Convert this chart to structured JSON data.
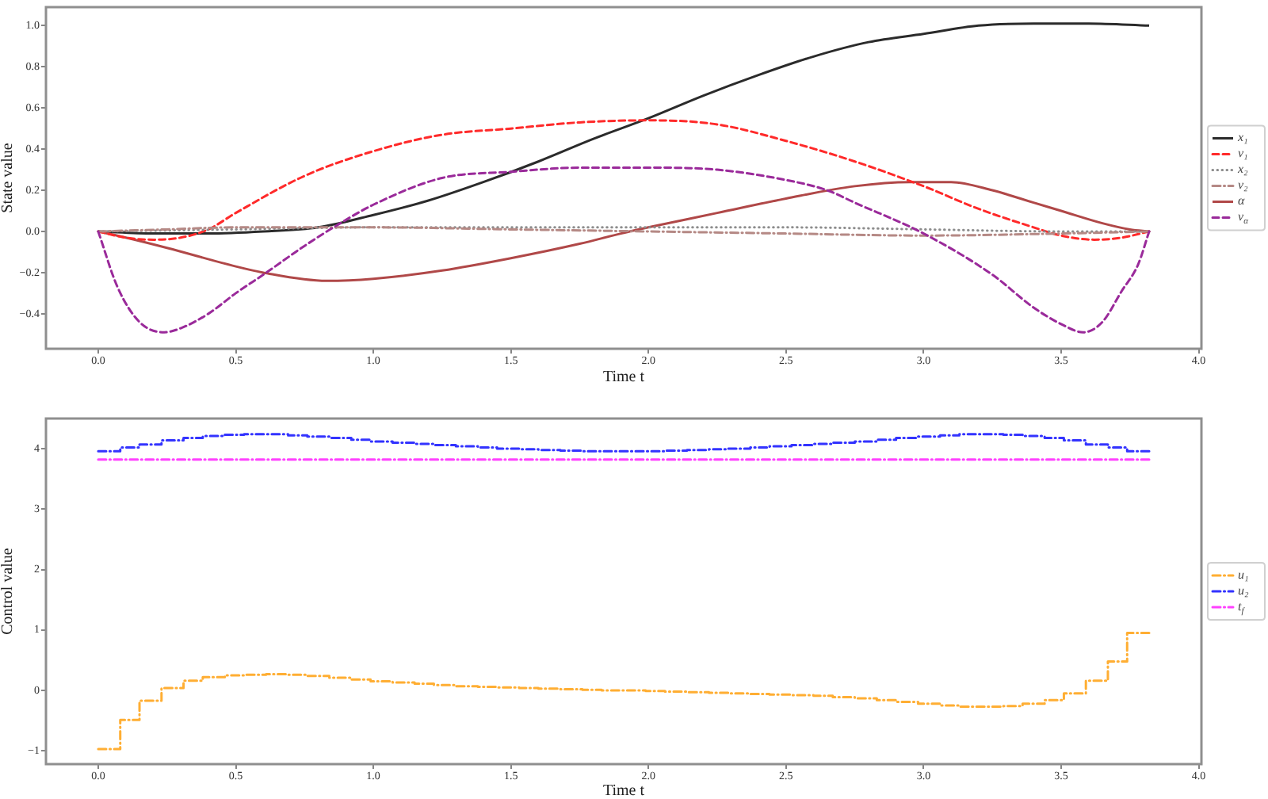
{
  "chart_data": [
    {
      "type": "line",
      "xlabel": "Time t",
      "ylabel": "State value",
      "xlim": [
        -0.19,
        4.01
      ],
      "ylim": [
        -0.57,
        1.09
      ],
      "xticks": [
        {
          "value": 0,
          "label": "0.0"
        },
        0.5,
        {
          "value": 1,
          "label": "1.0"
        },
        1.5,
        {
          "value": 2,
          "label": "2.0"
        },
        2.5,
        {
          "value": 3,
          "label": "3.0"
        },
        3.5,
        {
          "value": 4,
          "label": "4.0"
        }
      ],
      "yticks": [
        {
          "value": -0.4,
          "label": "−0.4"
        },
        {
          "value": -0.2,
          "label": "−0.2"
        },
        {
          "value": 0,
          "label": "0.0"
        },
        0.2,
        0.4,
        0.6,
        0.8,
        {
          "value": 1,
          "label": "1.0"
        }
      ],
      "legend": "right",
      "series": [
        {
          "name": "x₁",
          "color": "#2b2b2b",
          "line_style": "solid",
          "x": [
            0,
            0.2,
            0.4,
            0.6,
            0.8,
            1.0,
            1.2,
            1.4,
            1.6,
            1.8,
            2.0,
            2.2,
            2.4,
            2.6,
            2.8,
            3.0,
            3.2,
            3.4,
            3.6,
            3.82
          ],
          "values": [
            0,
            -0.01,
            -0.01,
            0,
            0.02,
            0.08,
            0.15,
            0.24,
            0.34,
            0.45,
            0.55,
            0.66,
            0.76,
            0.85,
            0.92,
            0.96,
            1.0,
            1.01,
            1.01,
            1.0
          ]
        },
        {
          "name": "v₁",
          "color": "#ff2a2a",
          "line_style": "dashed",
          "x": [
            0,
            0.1,
            0.2,
            0.3,
            0.4,
            0.5,
            0.75,
            1.0,
            1.25,
            1.5,
            1.75,
            2.0,
            2.25,
            2.5,
            2.75,
            3.0,
            3.2,
            3.4,
            3.5,
            3.62,
            3.72,
            3.82
          ],
          "values": [
            0,
            -0.03,
            -0.04,
            -0.03,
            0.01,
            0.09,
            0.27,
            0.39,
            0.47,
            0.5,
            0.53,
            0.54,
            0.52,
            0.44,
            0.34,
            0.22,
            0.11,
            0.02,
            -0.02,
            -0.04,
            -0.03,
            0
          ]
        },
        {
          "name": "x₂",
          "color": "#8c8c8c",
          "line_style": "dotted",
          "x": [
            0,
            0.5,
            1.0,
            1.5,
            2.0,
            2.5,
            3.0,
            3.5,
            3.82
          ],
          "values": [
            0,
            0.01,
            0.02,
            0.02,
            0.02,
            0.02,
            0.01,
            0,
            0
          ]
        },
        {
          "name": "v₂",
          "color": "#b58985",
          "line_style": "dashdot",
          "x": [
            0,
            0.25,
            0.5,
            1.0,
            1.5,
            2.0,
            2.5,
            3.0,
            3.5,
            3.82
          ],
          "values": [
            0,
            0.01,
            0.02,
            0.02,
            0.01,
            0,
            -0.01,
            -0.02,
            -0.01,
            0
          ]
        },
        {
          "name": "α",
          "color": "#b04848",
          "line_style": "solid",
          "x": [
            0,
            0.1,
            0.25,
            0.5,
            0.6,
            0.83,
            1.0,
            1.25,
            1.5,
            1.75,
            1.9,
            2.0,
            2.25,
            2.5,
            2.75,
            2.95,
            3.1,
            3.25,
            3.4,
            3.5,
            3.65,
            3.75,
            3.82
          ],
          "values": [
            0,
            -0.03,
            -0.08,
            -0.17,
            -0.2,
            -0.24,
            -0.23,
            -0.19,
            -0.13,
            -0.06,
            -0.01,
            0.02,
            0.09,
            0.16,
            0.22,
            0.24,
            0.24,
            0.2,
            0.14,
            0.1,
            0.04,
            0.01,
            0
          ]
        },
        {
          "name": "v$_{α}$",
          "color": "#9a2a9a",
          "line_style": "dashed",
          "x": [
            0,
            0.07,
            0.15,
            0.24,
            0.3,
            0.4,
            0.5,
            0.6,
            0.75,
            0.88,
            1.0,
            1.25,
            1.5,
            1.75,
            2.0,
            2.25,
            2.5,
            2.65,
            2.75,
            3.0,
            3.25,
            3.4,
            3.5,
            3.58,
            3.65,
            3.72,
            3.78,
            3.82
          ],
          "values": [
            0,
            -0.27,
            -0.44,
            -0.49,
            -0.47,
            -0.4,
            -0.3,
            -0.21,
            -0.07,
            0.04,
            0.13,
            0.26,
            0.29,
            0.31,
            0.31,
            0.3,
            0.25,
            0.2,
            0.14,
            -0.01,
            -0.21,
            -0.37,
            -0.45,
            -0.49,
            -0.44,
            -0.29,
            -0.16,
            0
          ]
        }
      ]
    },
    {
      "type": "step",
      "xlabel": "Time t",
      "ylabel": "Control value",
      "xlim": [
        -0.19,
        4.01
      ],
      "ylim": [
        -1.22,
        4.5
      ],
      "xticks": [
        {
          "value": 0,
          "label": "0.0"
        },
        0.5,
        {
          "value": 1,
          "label": "1.0"
        },
        1.5,
        {
          "value": 2,
          "label": "2.0"
        },
        2.5,
        {
          "value": 3,
          "label": "3.0"
        },
        3.5,
        {
          "value": 4,
          "label": "4.0"
        }
      ],
      "yticks": [
        {
          "value": -1,
          "label": "−1"
        },
        0,
        1,
        2,
        3,
        4
      ],
      "legend": "right",
      "x": [
        0,
        0.08,
        0.15,
        0.23,
        0.31,
        0.38,
        0.46,
        0.53,
        0.61,
        0.69,
        0.76,
        0.84,
        0.92,
        0.99,
        1.07,
        1.15,
        1.22,
        1.3,
        1.38,
        1.45,
        1.53,
        1.6,
        1.68,
        1.76,
        1.83,
        1.91,
        1.99,
        2.06,
        2.14,
        2.22,
        2.29,
        2.37,
        2.44,
        2.52,
        2.6,
        2.67,
        2.75,
        2.83,
        2.9,
        2.98,
        3.06,
        3.13,
        3.21,
        3.29,
        3.36,
        3.44,
        3.51,
        3.59,
        3.67,
        3.74,
        3.82
      ],
      "series": [
        {
          "name": "u₁",
          "color": "#ffae33",
          "line_style": "dashdot",
          "values": [
            -0.97,
            -0.49,
            -0.17,
            0.04,
            0.16,
            0.22,
            0.25,
            0.26,
            0.27,
            0.26,
            0.24,
            0.21,
            0.18,
            0.15,
            0.13,
            0.11,
            0.09,
            0.07,
            0.06,
            0.05,
            0.04,
            0.03,
            0.02,
            0.01,
            0,
            0,
            -0.01,
            -0.02,
            -0.03,
            -0.04,
            -0.05,
            -0.06,
            -0.07,
            -0.08,
            -0.09,
            -0.11,
            -0.13,
            -0.16,
            -0.19,
            -0.22,
            -0.25,
            -0.27,
            -0.27,
            -0.26,
            -0.22,
            -0.16,
            -0.05,
            0.16,
            0.48,
            0.95,
            0.95
          ]
        },
        {
          "name": "u₂",
          "color": "#3333ff",
          "line_style": "dashdot",
          "values": [
            3.96,
            4.02,
            4.07,
            4.14,
            4.18,
            4.21,
            4.23,
            4.24,
            4.24,
            4.22,
            4.2,
            4.18,
            4.15,
            4.12,
            4.1,
            4.08,
            4.06,
            4.04,
            4.02,
            4.0,
            3.99,
            3.98,
            3.97,
            3.96,
            3.96,
            3.96,
            3.96,
            3.97,
            3.98,
            3.99,
            4.0,
            4.02,
            4.04,
            4.06,
            4.08,
            4.1,
            4.12,
            4.15,
            4.18,
            4.2,
            4.22,
            4.24,
            4.24,
            4.23,
            4.21,
            4.18,
            4.14,
            4.07,
            4.02,
            3.96,
            3.96
          ]
        },
        {
          "name": "t$_{f}$",
          "color": "#ff40ff",
          "line_style": "dashdot",
          "x": [
            0,
            3.82
          ],
          "values": [
            3.82,
            3.82
          ]
        }
      ]
    }
  ]
}
